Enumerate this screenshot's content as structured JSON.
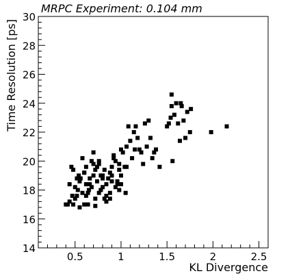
{
  "chart_data": {
    "type": "scatter",
    "title": "MRPC Experiment: 0.104 mm",
    "xlabel": "KL Divergence",
    "ylabel": "Time Resolution [ps]",
    "xlim": [
      0.1,
      2.6
    ],
    "ylim": [
      14,
      30
    ],
    "x_ticks": [
      0.5,
      1,
      1.5,
      2,
      2.5
    ],
    "x_tick_labels": [
      "0.5",
      "1",
      "1.5",
      "2",
      "2.5"
    ],
    "y_ticks": [
      14,
      16,
      18,
      20,
      22,
      24,
      26,
      28,
      30
    ],
    "y_tick_labels": [
      "14",
      "16",
      "18",
      "20",
      "22",
      "24",
      "26",
      "28",
      "30"
    ],
    "grid": false,
    "marker_color": "#000000",
    "series": [
      {
        "x": [
          0.4,
          0.42,
          0.44,
          0.46,
          0.48,
          0.44,
          0.47,
          0.5,
          0.52,
          0.54,
          0.5,
          0.53,
          0.55,
          0.58,
          0.6,
          0.48,
          0.52,
          0.56,
          0.6,
          0.62,
          0.64,
          0.58,
          0.62,
          0.66,
          0.68,
          0.7,
          0.72,
          0.62,
          0.66,
          0.7,
          0.74,
          0.76,
          0.78,
          0.7,
          0.74,
          0.78,
          0.8,
          0.82,
          0.84,
          0.76,
          0.8,
          0.84,
          0.88,
          0.9,
          0.92,
          0.86,
          0.9,
          0.94,
          0.96,
          0.98,
          1.0,
          0.9,
          0.94,
          0.98,
          1.02,
          1.04,
          1.06,
          0.88,
          0.92,
          0.96,
          1.0,
          0.84,
          0.8,
          0.76,
          0.72,
          0.68,
          0.64,
          1.08,
          1.12,
          1.16,
          1.2,
          1.24,
          1.28,
          1.1,
          1.14,
          1.18,
          1.22,
          1.3,
          1.34,
          1.36,
          1.38,
          1.42,
          1.26,
          1.32,
          1.5,
          1.52,
          1.54,
          1.55,
          1.56,
          1.58,
          1.6,
          1.62,
          1.64,
          1.66,
          1.68,
          1.7,
          1.72,
          1.75,
          1.76,
          1.65,
          1.55,
          1.98,
          2.15,
          1.0,
          1.06,
          1.15,
          0.98,
          1.05,
          0.55,
          0.6,
          0.65,
          0.72,
          0.78,
          0.82,
          0.88
        ],
        "y": [
          17.0,
          17.0,
          18.4,
          19.6,
          17.0,
          17.2,
          17.6,
          18.2,
          18.8,
          19.0,
          17.4,
          18.0,
          18.6,
          17.8,
          19.2,
          19.4,
          17.6,
          18.8,
          19.2,
          18.4,
          17.0,
          20.2,
          19.6,
          18.8,
          18.2,
          19.0,
          19.4,
          17.6,
          18.4,
          19.8,
          18.6,
          17.8,
          19.0,
          20.6,
          19.6,
          18.0,
          18.8,
          19.4,
          17.6,
          20.0,
          19.0,
          18.4,
          19.2,
          18.6,
          20.2,
          18.8,
          19.6,
          20.0,
          18.6,
          19.4,
          20.8,
          19.0,
          18.2,
          19.8,
          20.6,
          19.6,
          21.0,
          17.4,
          20.4,
          18.4,
          19.0,
          17.2,
          18.2,
          19.8,
          17.4,
          20.0,
          17.8,
          22.4,
          20.2,
          22.4,
          20.8,
          19.8,
          21.0,
          21.4,
          22.0,
          21.6,
          20.6,
          22.8,
          20.2,
          20.6,
          20.8,
          19.6,
          22.6,
          21.6,
          22.4,
          22.6,
          23.0,
          24.6,
          20.0,
          23.2,
          24.0,
          22.6,
          21.4,
          23.8,
          22.8,
          21.6,
          23.4,
          22.0,
          23.6,
          24.0,
          23.8,
          22.0,
          22.4,
          18.4,
          19.6,
          20.8,
          18.0,
          17.8,
          16.8,
          17.0,
          18.0,
          16.9,
          18.0,
          17.4,
          17.8
        ]
      }
    ]
  }
}
